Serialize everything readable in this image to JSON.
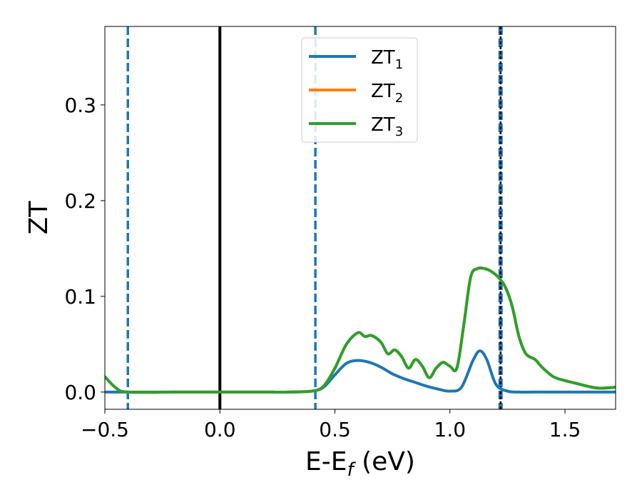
{
  "chart_data": {
    "type": "line",
    "xlabel": "E-E",
    "xlabel_sub": "f",
    "xlabel_unit": " (eV)",
    "ylabel": "ZT",
    "xlim": [
      -0.5,
      1.72
    ],
    "ylim": [
      -0.018,
      0.382
    ],
    "xticks": [
      -0.5,
      0.0,
      0.5,
      1.0,
      1.5
    ],
    "xtick_labels": [
      "−0.5",
      "0.0",
      "0.5",
      "1.0",
      "1.5"
    ],
    "yticks": [
      0.0,
      0.1,
      0.2,
      0.3
    ],
    "ytick_labels": [
      "0.0",
      "0.1",
      "0.2",
      "0.3"
    ],
    "grid": false,
    "legend_position": "top-center",
    "series": [
      {
        "name": "ZT",
        "name_sub": "1",
        "color": "#1f77b4",
        "x": [
          -0.5,
          -0.4,
          -0.2,
          0.0,
          0.2,
          0.3,
          0.4,
          0.45,
          0.5,
          0.55,
          0.6,
          0.65,
          0.7,
          0.75,
          0.8,
          0.85,
          0.9,
          0.95,
          1.0,
          1.05,
          1.1,
          1.13,
          1.16,
          1.2,
          1.25,
          1.3,
          1.4,
          1.5,
          1.6,
          1.72
        ],
        "y": [
          0.0,
          0.0,
          0.0,
          0.0,
          0.0,
          0.0,
          0.001,
          0.005,
          0.018,
          0.03,
          0.033,
          0.031,
          0.026,
          0.019,
          0.014,
          0.01,
          0.006,
          0.003,
          0.001,
          0.005,
          0.033,
          0.043,
          0.034,
          0.008,
          0.001,
          0.0,
          0.0,
          0.0,
          0.0,
          0.0
        ]
      },
      {
        "name": "ZT",
        "name_sub": "2",
        "color": "#ff7f0e",
        "x": [
          -0.5,
          -0.45,
          -0.4,
          -0.2,
          0.0,
          0.2,
          0.3,
          0.4,
          0.45,
          0.5,
          0.55,
          0.6,
          0.63,
          0.66,
          0.7,
          0.73,
          0.76,
          0.79,
          0.82,
          0.85,
          0.88,
          0.91,
          0.94,
          0.97,
          1.0,
          1.03,
          1.06,
          1.09,
          1.12,
          1.15,
          1.18,
          1.21,
          1.24,
          1.27,
          1.3,
          1.33,
          1.37,
          1.4,
          1.45,
          1.5,
          1.55,
          1.6,
          1.65,
          1.72
        ],
        "y": [
          0.016,
          0.004,
          0.0,
          0.0,
          0.0,
          0.0,
          0.0,
          0.001,
          0.006,
          0.025,
          0.05,
          0.062,
          0.058,
          0.059,
          0.052,
          0.04,
          0.044,
          0.037,
          0.025,
          0.034,
          0.027,
          0.015,
          0.025,
          0.031,
          0.027,
          0.025,
          0.07,
          0.12,
          0.129,
          0.129,
          0.126,
          0.12,
          0.11,
          0.09,
          0.058,
          0.04,
          0.034,
          0.026,
          0.016,
          0.012,
          0.009,
          0.006,
          0.004,
          0.005
        ]
      },
      {
        "name": "ZT",
        "name_sub": "3",
        "color": "#2ca02c",
        "x": [
          -0.5,
          -0.45,
          -0.4,
          -0.2,
          0.0,
          0.2,
          0.3,
          0.4,
          0.45,
          0.5,
          0.55,
          0.6,
          0.63,
          0.66,
          0.7,
          0.73,
          0.76,
          0.79,
          0.82,
          0.85,
          0.88,
          0.91,
          0.94,
          0.97,
          1.0,
          1.03,
          1.06,
          1.09,
          1.12,
          1.15,
          1.18,
          1.21,
          1.24,
          1.27,
          1.3,
          1.33,
          1.37,
          1.4,
          1.45,
          1.5,
          1.55,
          1.6,
          1.65,
          1.72
        ],
        "y": [
          0.016,
          0.004,
          0.0,
          0.0,
          0.0,
          0.0,
          0.0,
          0.001,
          0.006,
          0.025,
          0.05,
          0.062,
          0.058,
          0.059,
          0.052,
          0.04,
          0.044,
          0.037,
          0.025,
          0.034,
          0.027,
          0.015,
          0.025,
          0.031,
          0.027,
          0.025,
          0.07,
          0.12,
          0.129,
          0.129,
          0.126,
          0.12,
          0.11,
          0.09,
          0.058,
          0.04,
          0.034,
          0.026,
          0.016,
          0.012,
          0.009,
          0.006,
          0.004,
          0.005
        ]
      }
    ],
    "vlines": [
      {
        "x": -0.4,
        "color": "#1f77b4",
        "style": "dashed"
      },
      {
        "x": 0.0,
        "color": "#000000",
        "style": "solid"
      },
      {
        "x": 0.415,
        "color": "#1f77b4",
        "style": "dashed"
      },
      {
        "x": 1.22,
        "color": "#1f77b4",
        "style": "dashed-thick"
      },
      {
        "x": 1.22,
        "color": "#000000",
        "style": "dotted"
      }
    ]
  }
}
